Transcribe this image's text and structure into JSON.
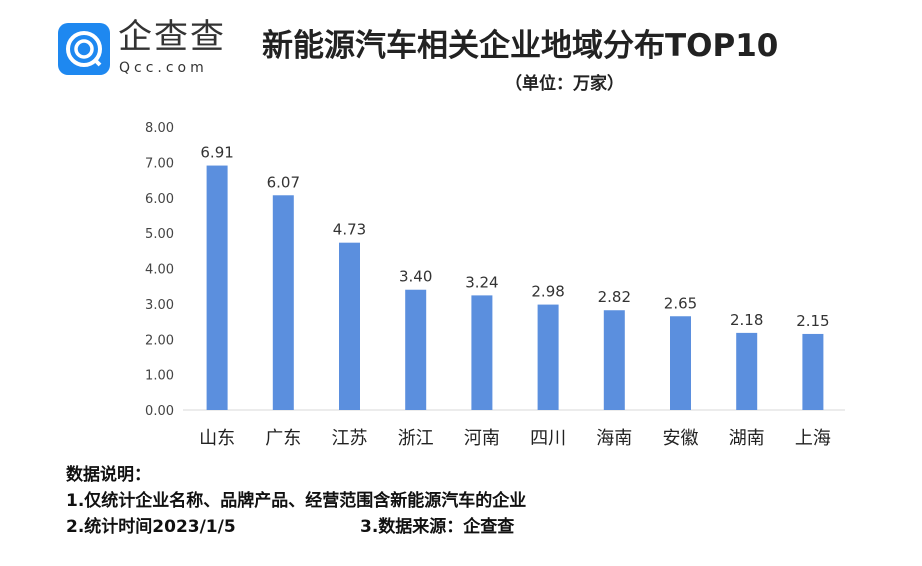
{
  "header": {
    "logo_text": "企查查",
    "logo_sub": "Qcc.com",
    "title": "新能源汽车相关企业地域分布TOP10",
    "unit": "（单位：万家）"
  },
  "chart_data": {
    "type": "bar",
    "categories": [
      "山东",
      "广东",
      "江苏",
      "浙江",
      "河南",
      "四川",
      "海南",
      "安徽",
      "湖南",
      "上海"
    ],
    "values": [
      6.91,
      6.07,
      4.73,
      3.4,
      3.24,
      2.98,
      2.82,
      2.65,
      2.18,
      2.15
    ],
    "ylim": [
      0,
      8
    ],
    "yticks": [
      "0.00",
      "1.00",
      "2.00",
      "3.00",
      "4.00",
      "5.00",
      "6.00",
      "7.00",
      "8.00"
    ],
    "grid": false,
    "bar_color": "#5b8fde"
  },
  "notes": {
    "heading": "数据说明：",
    "line1": "1.仅统计企业名称、品牌产品、经营范围含新能源汽车的企业",
    "line2": "2.统计时间2023/1/5",
    "line3": "3.数据来源：企查查"
  }
}
